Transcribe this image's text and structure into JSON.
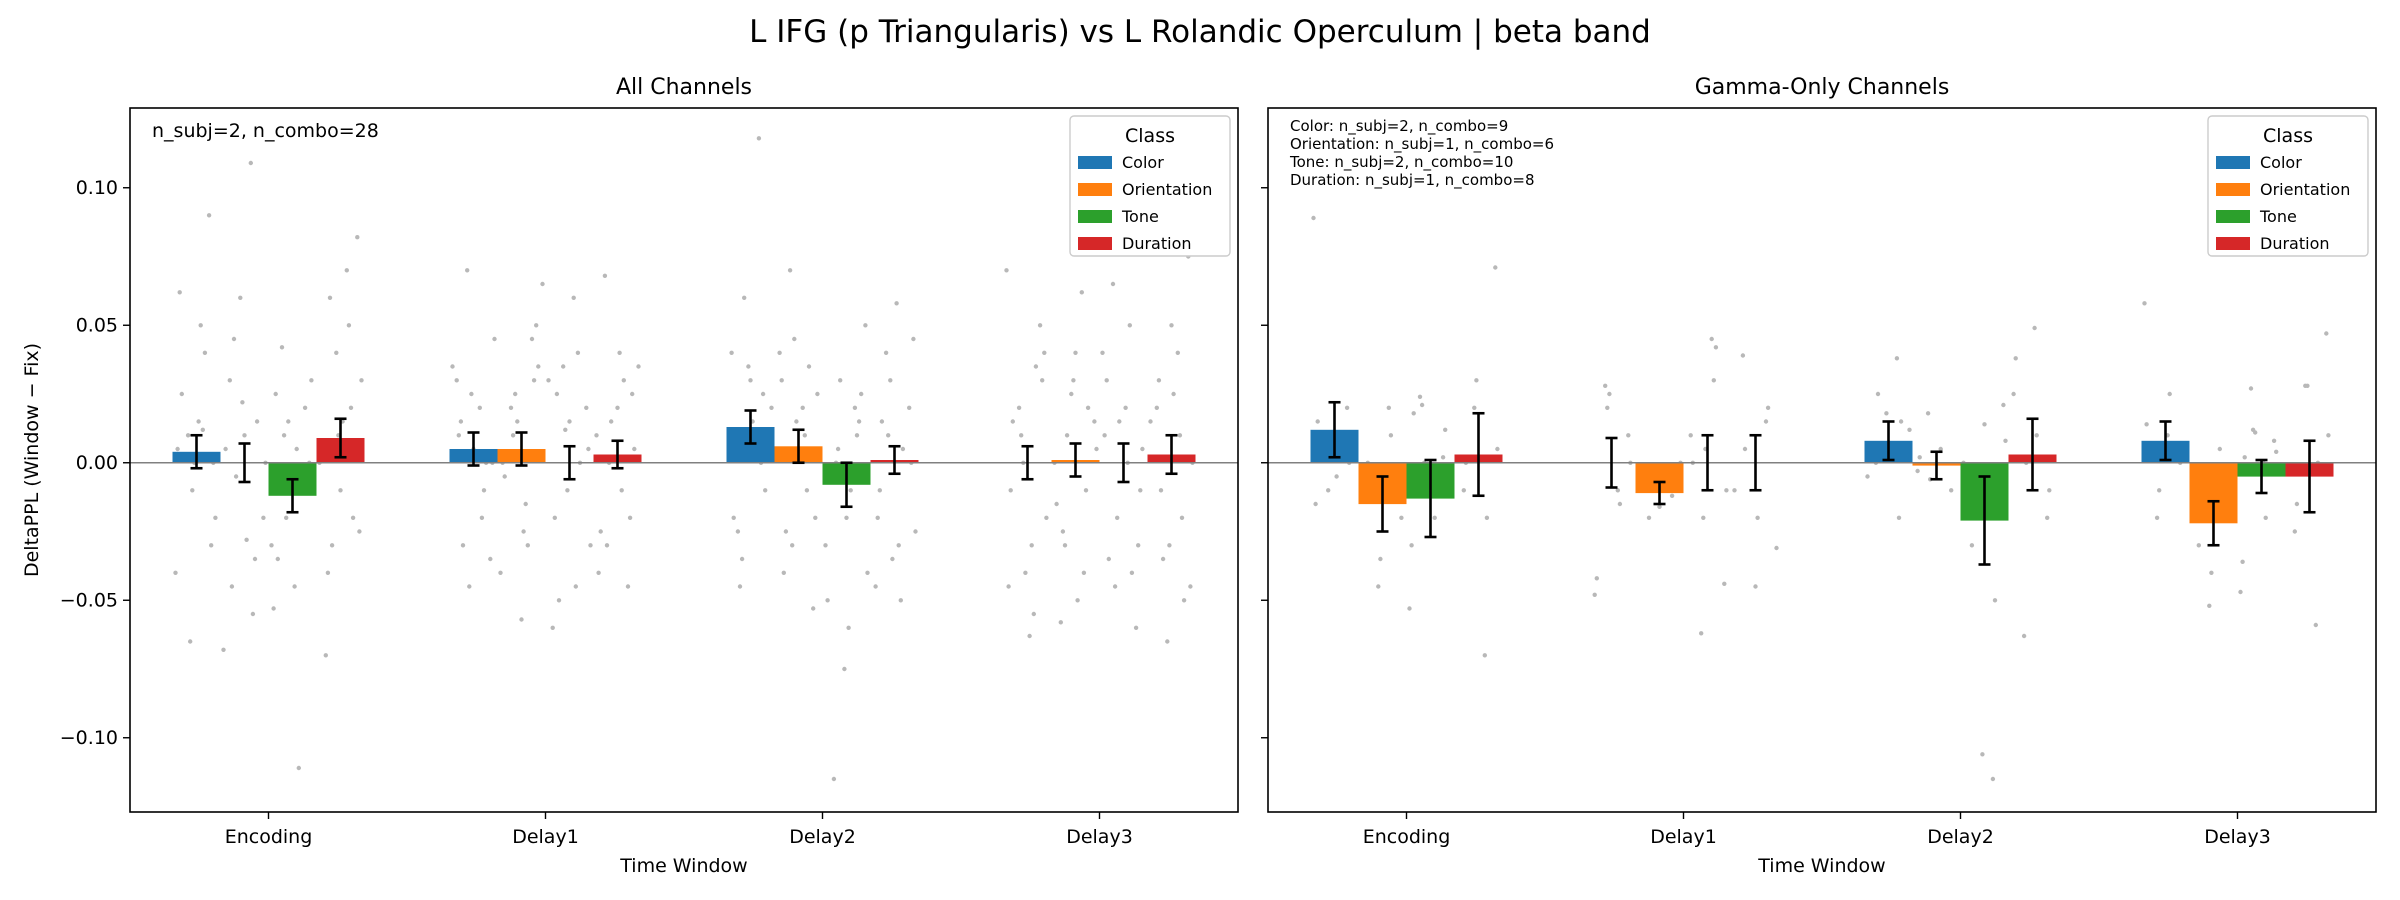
{
  "figure": {
    "suptitle": "L IFG (p Triangularis) vs L Rolandic Operculum  |  beta band",
    "ylabel": "DeltaPPL (Window − Fix)",
    "legend_title": "Class"
  },
  "colors": {
    "Color": "#1f77b4",
    "Orientation": "#ff7f0e",
    "Tone": "#2ca02c",
    "Duration": "#d62728",
    "points": "#b8b8b8",
    "zero_line": "#808080",
    "errorbar": "#000000"
  },
  "chart_data": [
    {
      "type": "bar",
      "title": "All Channels",
      "xlabel": "Time Window",
      "ylabel": "DeltaPPL (Window − Fix)",
      "categories": [
        "Encoding",
        "Delay1",
        "Delay2",
        "Delay3"
      ],
      "ylim": [
        -0.127,
        0.129
      ],
      "yticks": [
        -0.1,
        -0.05,
        0.0,
        0.05,
        0.1
      ],
      "ytick_labels": [
        "−0.10",
        "−0.05",
        "0.00",
        "0.05",
        "0.10"
      ],
      "grid": false,
      "legend_placement": "top-right",
      "annotation": [
        "n_subj=2, n_combo=28"
      ],
      "series": [
        {
          "name": "Color",
          "values": [
            0.004,
            0.005,
            0.013,
            0.0
          ],
          "err": [
            0.006,
            0.006,
            0.006,
            0.006
          ]
        },
        {
          "name": "Orientation",
          "values": [
            0.0,
            0.005,
            0.006,
            0.001
          ],
          "err": [
            0.007,
            0.006,
            0.006,
            0.006
          ]
        },
        {
          "name": "Tone",
          "values": [
            -0.012,
            0.0,
            -0.008,
            0.0
          ],
          "err": [
            0.006,
            0.006,
            0.008,
            0.007
          ]
        },
        {
          "name": "Duration",
          "values": [
            0.009,
            0.003,
            0.001,
            0.003
          ],
          "err": [
            0.007,
            0.005,
            0.005,
            0.007
          ]
        }
      ],
      "points": [
        [
          [
            -0.04,
            0.09,
            0.015,
            0.01,
            0.005,
            -0.03,
            0.05,
            -0.065,
            0.062,
            0.0,
            0.012,
            -0.01,
            0.025,
            -0.02,
            0.04,
            0.0
          ],
          [
            0.109,
            0.06,
            0.03,
            -0.02,
            -0.055,
            0.022,
            -0.045,
            0.0,
            -0.035,
            0.01,
            0.045,
            -0.068,
            0.015,
            -0.028,
            -0.005,
            0.005
          ],
          [
            0.042,
            -0.03,
            0.02,
            -0.045,
            0.01,
            -0.053,
            -0.01,
            0.005,
            -0.02,
            0.025,
            0.0,
            -0.111,
            0.015,
            -0.035,
            0.03,
            -0.005
          ],
          [
            0.082,
            0.07,
            0.04,
            -0.07,
            -0.025,
            0.05,
            0.01,
            -0.04,
            0.03,
            0.02,
            -0.01,
            0.06,
            0.0,
            -0.02,
            0.015,
            -0.03
          ]
        ],
        [
          [
            0.07,
            0.03,
            -0.035,
            0.02,
            -0.045,
            0.01,
            0.0,
            -0.02,
            0.025,
            0.015,
            0.045,
            -0.01,
            0.005,
            -0.03,
            0.035,
            0.0
          ],
          [
            0.065,
            0.045,
            -0.057,
            0.02,
            -0.04,
            0.03,
            -0.025,
            0.01,
            0.0,
            0.05,
            -0.015,
            0.025,
            -0.005,
            0.035,
            -0.03,
            0.015
          ],
          [
            0.06,
            0.035,
            -0.06,
            0.02,
            -0.045,
            0.012,
            -0.02,
            0.005,
            0.04,
            -0.01,
            0.025,
            -0.03,
            0.0,
            0.015,
            -0.05,
            0.03
          ],
          [
            0.068,
            0.035,
            -0.045,
            0.02,
            -0.03,
            0.01,
            -0.02,
            0.04,
            0.0,
            -0.04,
            0.025,
            -0.01,
            0.015,
            -0.025,
            0.005,
            0.03
          ]
        ],
        [
          [
            0.118,
            0.035,
            -0.025,
            0.02,
            0.0,
            0.03,
            -0.045,
            0.01,
            0.025,
            0.015,
            -0.035,
            0.04,
            -0.01,
            0.005,
            0.06,
            -0.02
          ],
          [
            0.07,
            0.04,
            -0.053,
            0.02,
            -0.03,
            0.03,
            -0.02,
            0.01,
            0.045,
            -0.04,
            0.025,
            -0.01,
            0.015,
            -0.025,
            0.005,
            0.035
          ],
          [
            0.05,
            0.02,
            -0.075,
            -0.115,
            -0.04,
            0.01,
            -0.02,
            0.0,
            -0.03,
            0.015,
            -0.06,
            0.005,
            -0.05,
            0.025,
            -0.01,
            0.03
          ],
          [
            0.058,
            0.04,
            -0.045,
            0.02,
            -0.03,
            0.01,
            -0.02,
            0.0,
            -0.05,
            0.03,
            -0.01,
            0.045,
            0.005,
            -0.035,
            0.015,
            -0.025
          ]
        ],
        [
          [
            0.07,
            0.05,
            -0.063,
            0.02,
            -0.045,
            0.03,
            -0.03,
            0.01,
            -0.01,
            0.04,
            -0.055,
            0.0,
            0.015,
            -0.02,
            0.035,
            -0.04
          ],
          [
            0.062,
            0.025,
            -0.058,
            0.015,
            -0.04,
            0.03,
            -0.025,
            0.005,
            -0.01,
            0.04,
            -0.03,
            0.0,
            0.02,
            -0.05,
            0.01,
            -0.015
          ],
          [
            0.065,
            0.04,
            -0.06,
            0.02,
            -0.045,
            0.01,
            -0.03,
            0.0,
            -0.02,
            0.03,
            -0.01,
            0.05,
            0.015,
            -0.035,
            0.005,
            -0.04
          ],
          [
            0.075,
            0.04,
            -0.065,
            0.02,
            -0.045,
            0.01,
            -0.03,
            0.03,
            0.0,
            -0.02,
            0.05,
            -0.01,
            0.015,
            -0.05,
            0.025,
            -0.035
          ]
        ]
      ]
    },
    {
      "type": "bar",
      "title": "Gamma-Only Channels",
      "xlabel": "Time Window",
      "categories": [
        "Encoding",
        "Delay1",
        "Delay2",
        "Delay3"
      ],
      "ylim": [
        -0.127,
        0.129
      ],
      "yticks": [
        -0.1,
        -0.05,
        0.0,
        0.05,
        0.1
      ],
      "ytick_labels": [
        "",
        "",
        "",
        "",
        ""
      ],
      "grid": false,
      "legend_placement": "top-right",
      "annotation": [
        "Color: n_subj=2, n_combo=9",
        "Orientation: n_subj=1, n_combo=6",
        "Tone: n_subj=2, n_combo=10",
        "Duration: n_subj=1, n_combo=8"
      ],
      "series": [
        {
          "name": "Color",
          "values": [
            0.012,
            0.0,
            0.008,
            0.008
          ],
          "err": [
            0.01,
            0.009,
            0.007,
            0.007
          ]
        },
        {
          "name": "Orientation",
          "values": [
            -0.015,
            -0.011,
            -0.001,
            -0.022
          ],
          "err": [
            0.01,
            0.004,
            0.005,
            0.008
          ]
        },
        {
          "name": "Tone",
          "values": [
            -0.013,
            0.0,
            -0.021,
            -0.005
          ],
          "err": [
            0.014,
            0.01,
            0.016,
            0.006
          ]
        },
        {
          "name": "Duration",
          "values": [
            0.003,
            0.0,
            0.003,
            -0.005
          ],
          "err": [
            0.015,
            0.01,
            0.013,
            0.013
          ]
        }
      ],
      "points": [
        [
          [
            0.089,
            0.02,
            -0.005,
            0.01,
            -0.015,
            0.0,
            0.005,
            -0.01,
            0.015
          ],
          [
            0.02,
            -0.045,
            0.0,
            -0.02,
            0.01,
            -0.035
          ],
          [
            0.024,
            -0.053,
            0.002,
            -0.012,
            0.021,
            -0.03,
            0.012,
            -0.02,
            0.0,
            0.018
          ],
          [
            0.071,
            -0.07,
            0.02,
            -0.01,
            0.005,
            -0.02,
            0.03,
            0.0
          ]
        ],
        [
          [
            0.028,
            -0.048,
            0.01,
            -0.01,
            0.02,
            -0.042,
            0.0,
            -0.015,
            0.025
          ],
          [
            0.0,
            -0.01,
            -0.016,
            -0.02,
            -0.005,
            -0.012
          ],
          [
            0.045,
            -0.062,
            0.01,
            -0.044,
            0.03,
            -0.02,
            0.0,
            -0.01,
            0.042,
            0.005
          ],
          [
            0.039,
            -0.031,
            0.015,
            -0.045,
            0.005,
            -0.01,
            0.02,
            -0.02
          ]
        ],
        [
          [
            0.038,
            0.018,
            0.0,
            0.012,
            -0.02,
            0.005,
            0.025,
            -0.005,
            0.015
          ],
          [
            0.018,
            -0.003,
            -0.01,
            0.005,
            -0.006,
            0.002
          ],
          [
            0.021,
            -0.115,
            -0.106,
            -0.03,
            0.008,
            -0.05,
            0.014,
            -0.02,
            0.0,
            -0.01
          ],
          [
            0.049,
            -0.063,
            0.025,
            -0.02,
            0.01,
            0.0,
            0.038,
            -0.01
          ]
        ],
        [
          [
            0.058,
            0.002,
            0.01,
            -0.02,
            0.014,
            0.0,
            0.025,
            -0.01,
            0.005
          ],
          [
            0.005,
            -0.052,
            -0.03,
            -0.02,
            -0.01,
            -0.04
          ],
          [
            0.027,
            -0.047,
            0.008,
            0.0,
            0.012,
            -0.036,
            0.004,
            -0.02,
            0.011,
            0.002
          ],
          [
            0.047,
            -0.059,
            0.028,
            -0.025,
            0.01,
            0.0,
            0.028,
            -0.015
          ]
        ]
      ]
    }
  ]
}
